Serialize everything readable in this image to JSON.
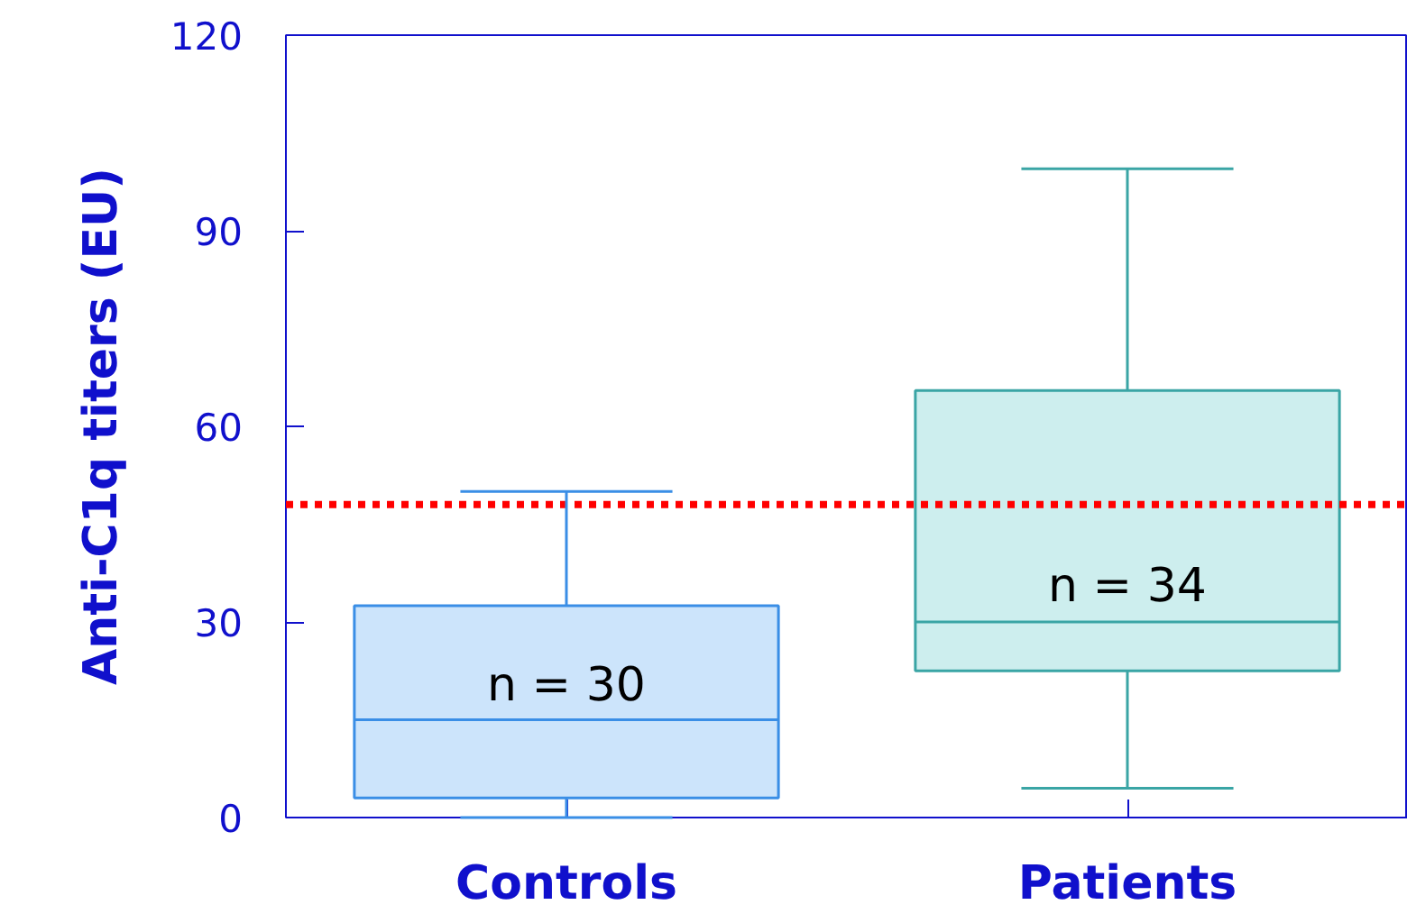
{
  "chart_data": {
    "type": "box",
    "ylabel": "Anti-C1q titers (EU)",
    "categories": [
      "Controls",
      "Patients"
    ],
    "boxes": [
      {
        "low": 0,
        "q1": 3,
        "median": 15,
        "q3": 32.5,
        "high": 50
      },
      {
        "low": 4.5,
        "q1": 22.5,
        "median": 30,
        "q3": 65.5,
        "high": 99.5
      }
    ],
    "colors": [
      "#cce4fb",
      "#cdeeee"
    ],
    "ylim": [
      0,
      120
    ],
    "yticks": [
      0,
      30,
      60,
      90,
      120
    ],
    "ref_lines": [
      {
        "axis": "y",
        "value": 48,
        "color": "#ff0000",
        "line_style": "dotted"
      }
    ],
    "annotations": [
      "n = 30",
      "n = 34"
    ],
    "grid": false
  }
}
